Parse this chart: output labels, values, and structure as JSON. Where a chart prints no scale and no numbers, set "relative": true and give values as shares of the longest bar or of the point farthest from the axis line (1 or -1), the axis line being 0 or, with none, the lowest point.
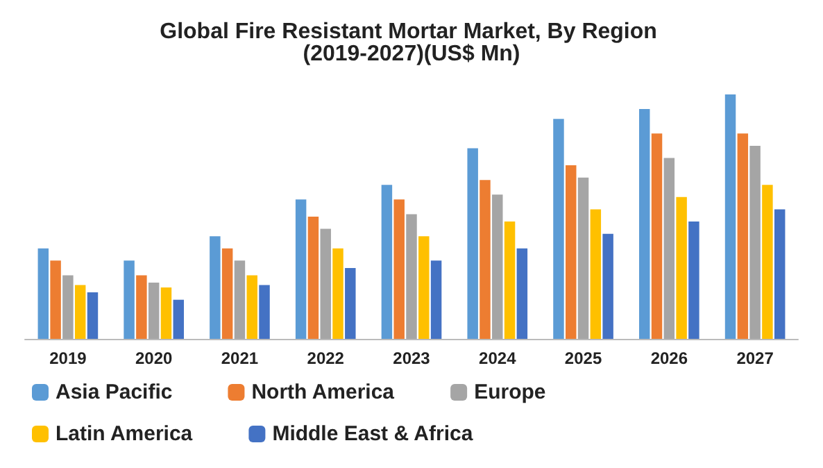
{
  "chart_data": {
    "type": "bar",
    "title": "Global Fire Resistant Mortar Market, By Region (2019-2027)(US$ Mn)",
    "relative": true,
    "categories": [
      "2019",
      "2020",
      "2021",
      "2022",
      "2023",
      "2024",
      "2025",
      "2026",
      "2027"
    ],
    "legend": "bottom",
    "series": [
      {
        "name": "Asia Pacific",
        "color": "#5b9bd5",
        "values": [
          0.37,
          0.32,
          0.42,
          0.57,
          0.63,
          0.78,
          0.9,
          0.94,
          1
        ]
      },
      {
        "name": "North America",
        "color": "#ed7d31",
        "values": [
          0.32,
          0.26,
          0.37,
          0.5,
          0.57,
          0.65,
          0.71,
          0.84,
          0.84
        ]
      },
      {
        "name": "Europe",
        "color": "#a5a5a5",
        "values": [
          0.26,
          0.23,
          0.32,
          0.45,
          0.51,
          0.59,
          0.66,
          0.74,
          0.79
        ]
      },
      {
        "name": "Latin America",
        "color": "#ffc000",
        "values": [
          0.22,
          0.21,
          0.26,
          0.37,
          0.42,
          0.48,
          0.53,
          0.58,
          0.63
        ]
      },
      {
        "name": "Middle East & Africa",
        "color": "#4472c4",
        "values": [
          0.19,
          0.16,
          0.22,
          0.29,
          0.32,
          0.37,
          0.43,
          0.48,
          0.53
        ]
      }
    ]
  }
}
